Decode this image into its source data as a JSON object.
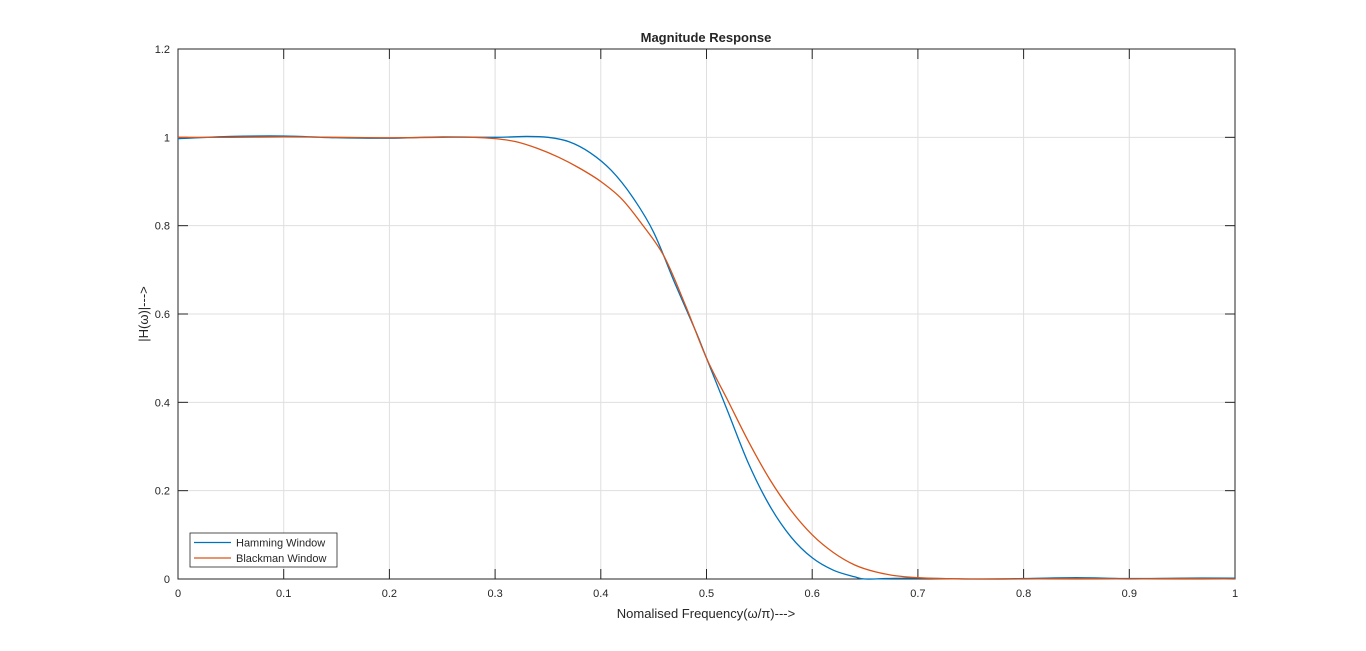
{
  "chart_data": {
    "type": "line",
    "title": "Magnitude Response",
    "xlabel": "Nomalised Frequency(ω/π)--->",
    "ylabel": "|H(ω)|--->",
    "xlim": [
      0,
      1
    ],
    "ylim": [
      0,
      1.2
    ],
    "xticks": [
      0,
      0.1,
      0.2,
      0.3,
      0.4,
      0.5,
      0.6,
      0.7,
      0.8,
      0.9,
      1
    ],
    "xtick_labels": [
      "0",
      "0.1",
      "0.2",
      "0.3",
      "0.4",
      "0.5",
      "0.6",
      "0.7",
      "0.8",
      "0.9",
      "1"
    ],
    "yticks": [
      0,
      0.2,
      0.4,
      0.6,
      0.8,
      1,
      1.2
    ],
    "ytick_labels": [
      "0",
      "0.2",
      "0.4",
      "0.6",
      "0.8",
      "1",
      "1.2"
    ],
    "grid": true,
    "legend_position": "bottom-left",
    "series": [
      {
        "name": "Hamming Window",
        "color": "#0072BD",
        "x": [
          0,
          0.05,
          0.1,
          0.15,
          0.2,
          0.25,
          0.3,
          0.33,
          0.35,
          0.37,
          0.39,
          0.41,
          0.43,
          0.45,
          0.47,
          0.49,
          0.5,
          0.52,
          0.54,
          0.56,
          0.58,
          0.6,
          0.62,
          0.64,
          0.65,
          0.67,
          0.7,
          0.75,
          0.8,
          0.85,
          0.9,
          0.95,
          1
        ],
        "y": [
          0.997,
          1.002,
          1.003,
          0.999,
          0.998,
          1.001,
          1.0,
          1.002,
          1.0,
          0.99,
          0.965,
          0.925,
          0.865,
          0.785,
          0.67,
          0.56,
          0.5,
          0.38,
          0.26,
          0.165,
          0.095,
          0.048,
          0.02,
          0.005,
          0.0,
          0.001,
          0.002,
          0.0,
          0.001,
          0.003,
          0.001,
          0.002,
          0.002
        ]
      },
      {
        "name": "Blackman Window",
        "color": "#D95319",
        "x": [
          0,
          0.05,
          0.1,
          0.15,
          0.2,
          0.25,
          0.28,
          0.3,
          0.32,
          0.34,
          0.36,
          0.38,
          0.4,
          0.42,
          0.44,
          0.46,
          0.48,
          0.5,
          0.52,
          0.54,
          0.56,
          0.58,
          0.6,
          0.62,
          0.64,
          0.66,
          0.68,
          0.7,
          0.72,
          0.75,
          0.8,
          0.85,
          0.9,
          0.95,
          1
        ],
        "y": [
          1.0,
          1.0,
          1.001,
          1.0,
          0.999,
          1.0,
          1.0,
          0.997,
          0.99,
          0.975,
          0.955,
          0.93,
          0.9,
          0.86,
          0.8,
          0.73,
          0.62,
          0.5,
          0.405,
          0.31,
          0.225,
          0.155,
          0.1,
          0.06,
          0.032,
          0.016,
          0.007,
          0.003,
          0.001,
          0.0,
          0.0,
          0.001,
          0.0,
          0.001,
          0.0
        ]
      }
    ]
  }
}
